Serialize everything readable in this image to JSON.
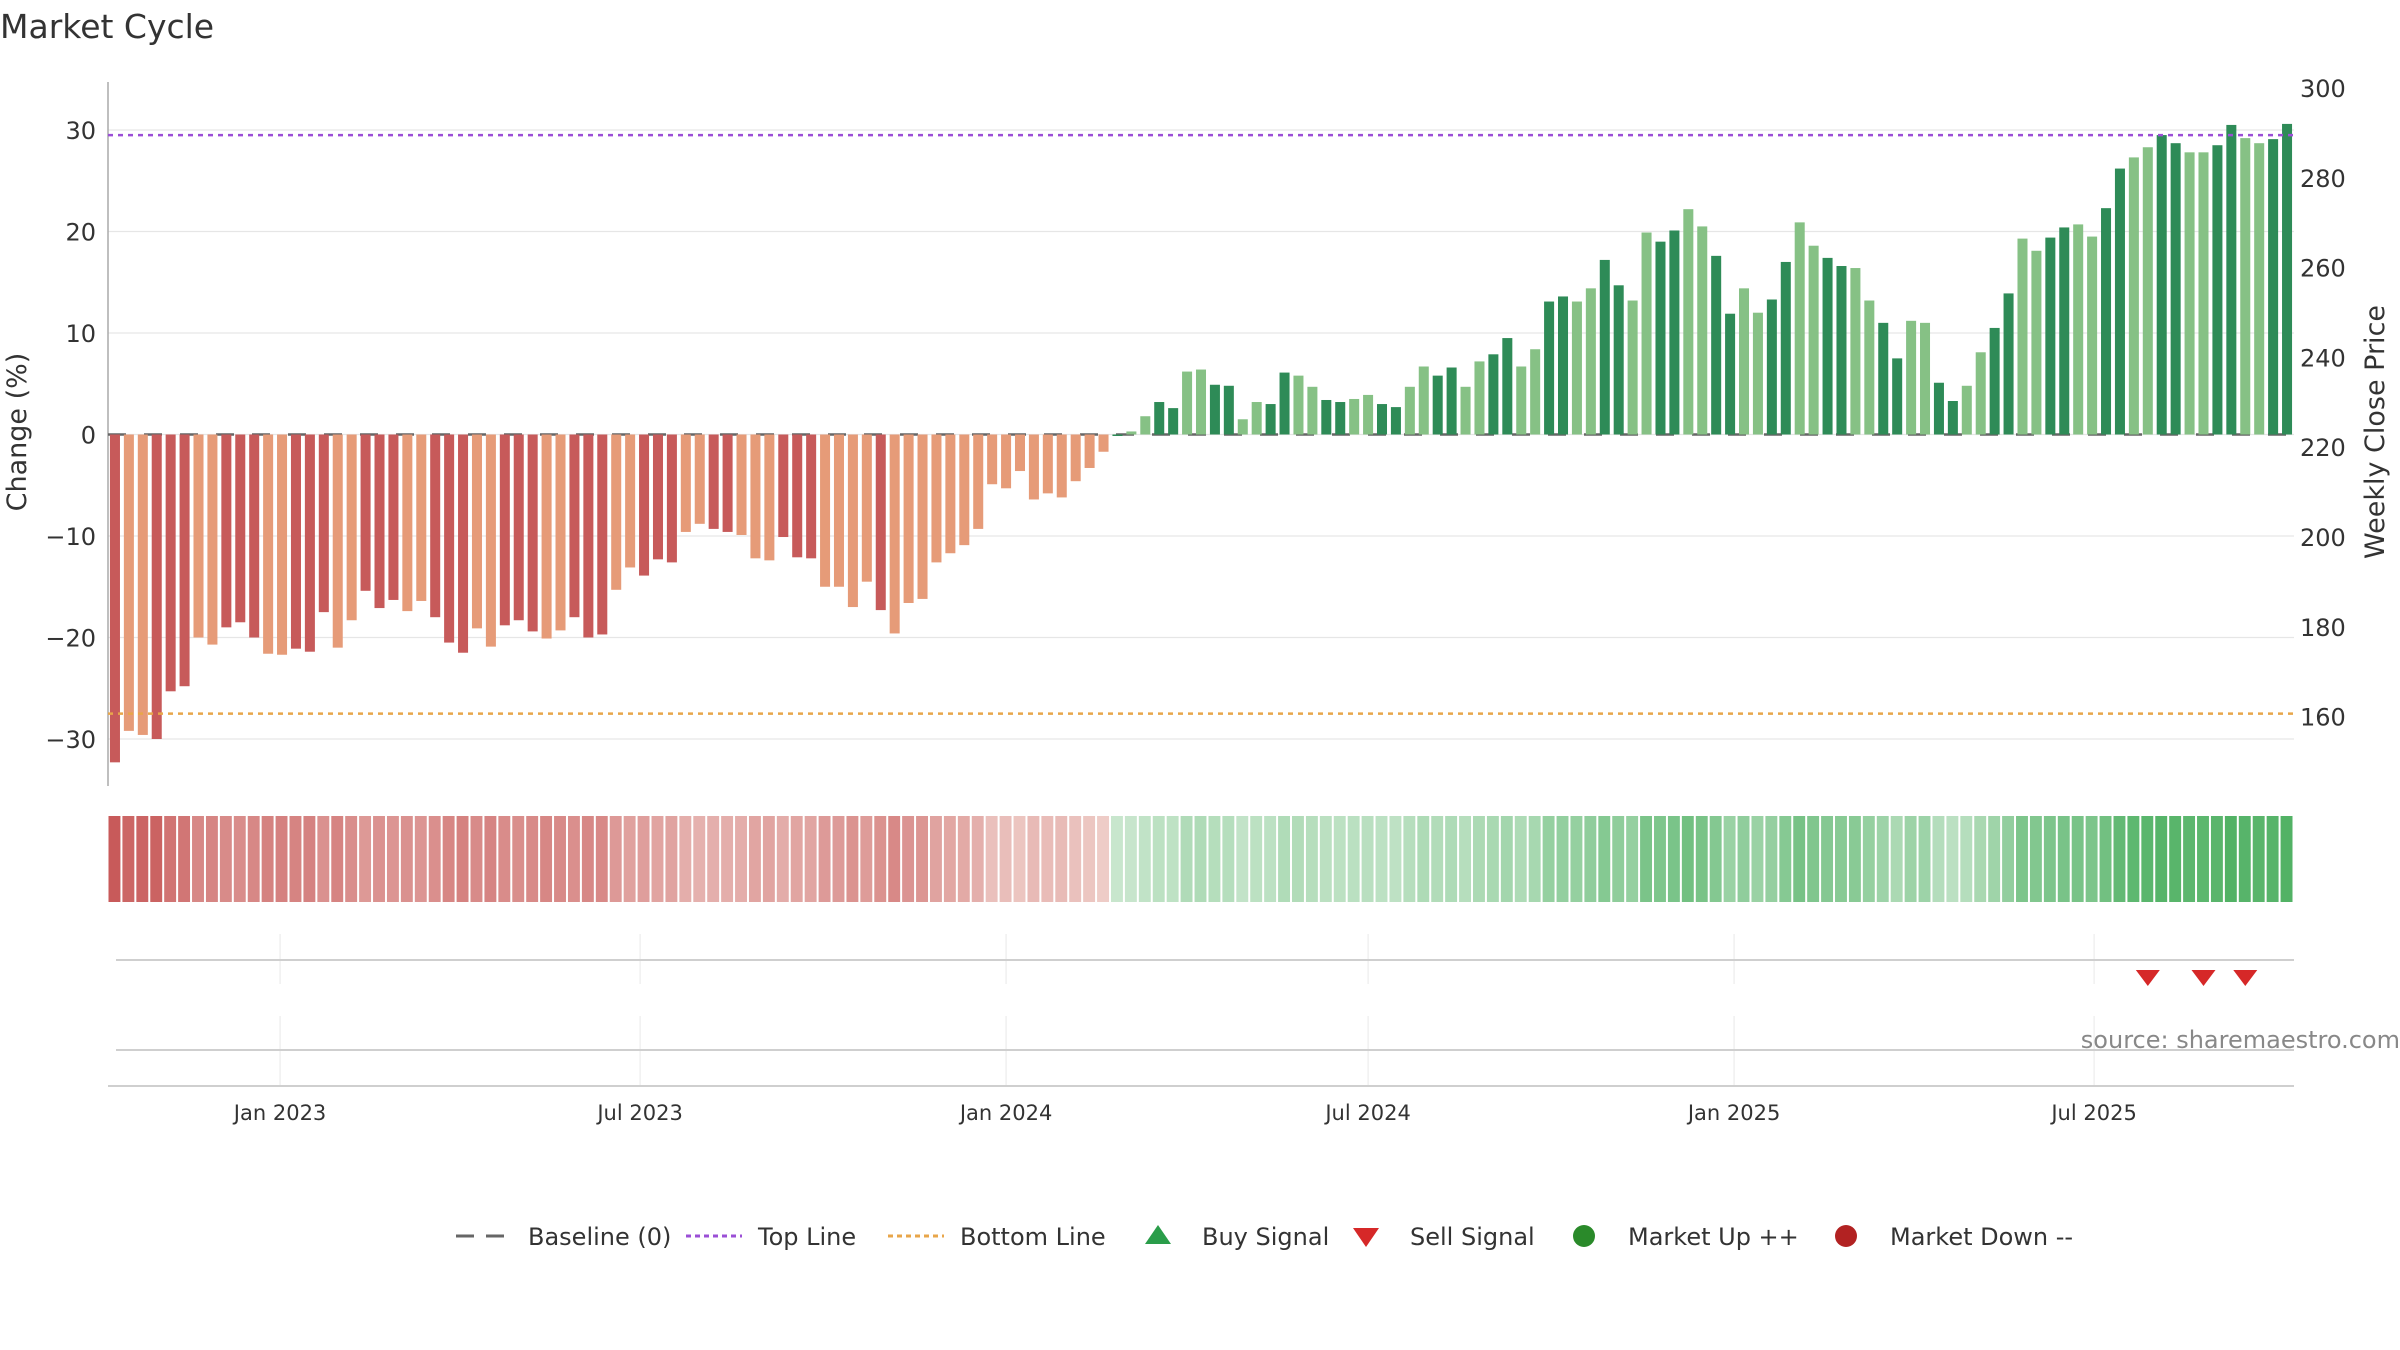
{
  "title": "Market Cycle",
  "source": "source: sharemaestro.com",
  "colors": {
    "neg_dark": "#c75a5a",
    "neg_light": "#e69b78",
    "pos_dark": "#2e8b57",
    "pos_light": "#86c185",
    "top_line": "#9b4fd6",
    "bottom_line": "#e8a64a",
    "baseline": "#666666",
    "buy": "#2a9d4a",
    "sell": "#d62828",
    "market_up": "#2a8a2a",
    "market_down": "#b22222"
  },
  "chart_data": {
    "type": "bar",
    "title": "Market Cycle",
    "ylabel": "Change (%)",
    "y2label": "Weekly Close Price",
    "ylim": [
      -35,
      35
    ],
    "y2lim": [
      145,
      300
    ],
    "yticks": [
      30,
      20,
      10,
      0,
      -10,
      -20,
      -30
    ],
    "ytick_labels": [
      "30",
      "20",
      "10",
      "0",
      "−10",
      "−20",
      "−30"
    ],
    "y2ticks": [
      300,
      280,
      260,
      240,
      220,
      200,
      180,
      160
    ],
    "top_line": 29.5,
    "bottom_line": -27.5,
    "x_start": "2022-10-10",
    "x_end": "2025-10-13",
    "x_interval_days": 7,
    "x_ticks": [
      {
        "date": "2023-01-01",
        "label": "Jan 2023"
      },
      {
        "date": "2023-07-01",
        "label": "Jul 2023"
      },
      {
        "date": "2024-01-01",
        "label": "Jan 2024"
      },
      {
        "date": "2024-07-01",
        "label": "Jul 2024"
      },
      {
        "date": "2025-01-01",
        "label": "Jan 2025"
      },
      {
        "date": "2025-07-01",
        "label": "Jul 2025"
      }
    ],
    "values": [
      -32.3,
      -29.2,
      -29.6,
      -30,
      -25.3,
      -24.8,
      -20,
      -20.7,
      -19,
      -18.5,
      -20,
      -21.6,
      -21.7,
      -21.1,
      -21.4,
      -17.5,
      -21,
      -18.3,
      -15.4,
      -17.1,
      -16.3,
      -17.4,
      -16.4,
      -18,
      -20.5,
      -21.5,
      -19.1,
      -20.9,
      -18.8,
      -18.3,
      -19.4,
      -20.1,
      -19.3,
      -18,
      -20,
      -19.7,
      -15.3,
      -13.1,
      -13.9,
      -12.3,
      -12.6,
      -9.6,
      -8.8,
      -9.3,
      -9.6,
      -9.9,
      -12.2,
      -12.4,
      -10.1,
      -12.1,
      -12.2,
      -15,
      -15,
      -17,
      -14.5,
      -17.3,
      -19.6,
      -16.6,
      -16.2,
      -12.6,
      -11.7,
      -10.9,
      -9.3,
      -4.9,
      -5.3,
      -3.6,
      -6.4,
      -5.8,
      -6.2,
      -4.6,
      -3.3,
      -1.7,
      0,
      0.3,
      1.8,
      3.2,
      2.6,
      6.2,
      6.4,
      4.9,
      4.8,
      1.5,
      3.2,
      3,
      6.1,
      5.8,
      4.7,
      3.4,
      3.2,
      3.5,
      3.9,
      3,
      2.7,
      4.7,
      6.7,
      5.8,
      6.6,
      4.7,
      7.2,
      7.9,
      9.5,
      6.7,
      8.4,
      13.1,
      13.6,
      13.1,
      14.4,
      17.2,
      14.7,
      13.2,
      19.9,
      19,
      20.1,
      22.2,
      20.5,
      17.6,
      11.9,
      14.4,
      12,
      13.3,
      17,
      20.9,
      18.6,
      17.4,
      16.6,
      16.4,
      13.2,
      11,
      7.5,
      11.2,
      11,
      5.1,
      3.3,
      4.8,
      8.1,
      10.5,
      13.9,
      19.3,
      18.1,
      19.4,
      20.4,
      20.7,
      19.5,
      22.3,
      26.2,
      27.3,
      28.3,
      29.5,
      28.7,
      27.8,
      27.8,
      28.5,
      30.5,
      29.2,
      28.7,
      29.1,
      30.6
    ],
    "legend": [
      {
        "label": "Baseline (0)",
        "type": "dash"
      },
      {
        "label": "Top Line",
        "type": "dotted-purple"
      },
      {
        "label": "Bottom Line",
        "type": "dotted-orange"
      },
      {
        "label": "Buy Signal",
        "type": "triangle-up"
      },
      {
        "label": "Sell Signal",
        "type": "triangle-down"
      },
      {
        "label": "Market Up ++",
        "type": "circle-green"
      },
      {
        "label": "Market Down --",
        "type": "circle-red"
      }
    ],
    "sell_signals": [
      {
        "date": "2025-07-28"
      },
      {
        "date": "2025-08-25"
      },
      {
        "date": "2025-09-15"
      }
    ],
    "buy_signals": [],
    "market_up_markers": [],
    "market_down_markers": []
  }
}
